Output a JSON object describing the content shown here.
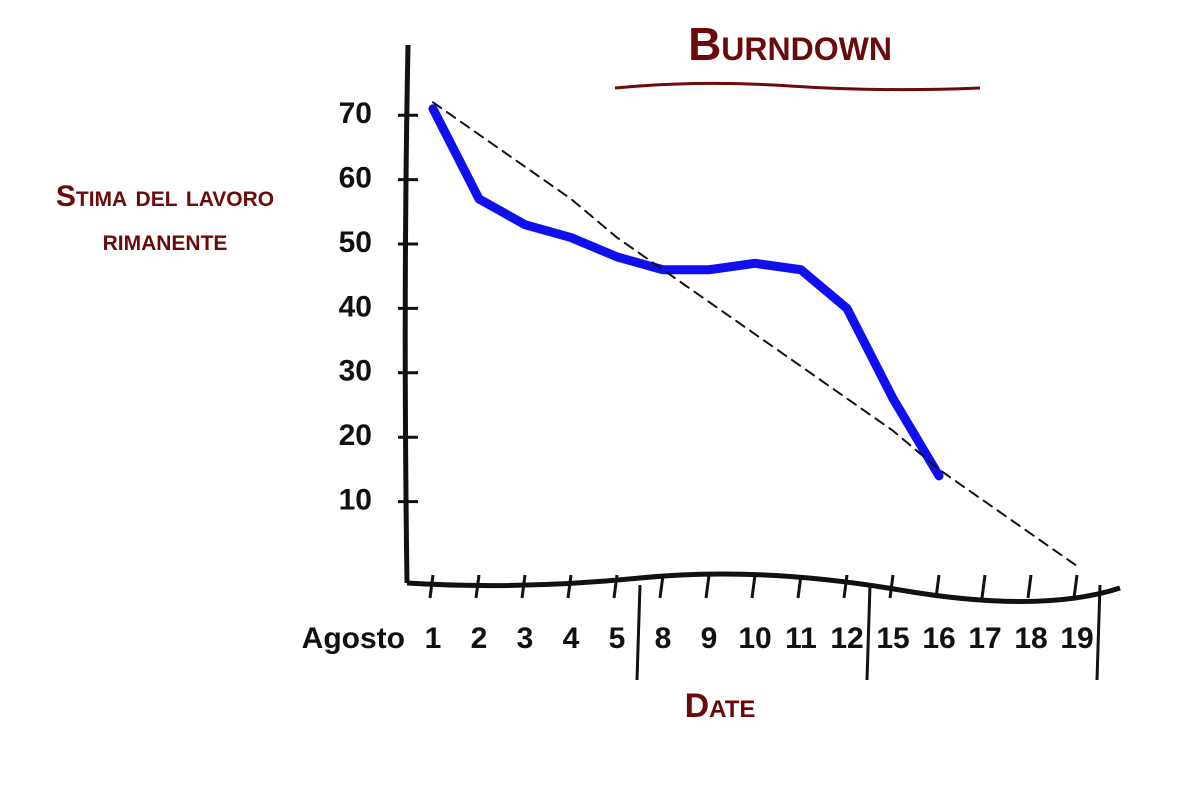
{
  "chart_data": {
    "type": "line",
    "title": "Burndown",
    "y_label": "Stima del lavoro rimanente",
    "x_label": "Date",
    "x_prefix": "Agosto",
    "categories": [
      "1",
      "2",
      "3",
      "4",
      "5",
      "8",
      "9",
      "10",
      "11",
      "12",
      "15",
      "16",
      "17",
      "18",
      "19"
    ],
    "series": [
      {
        "color": "#1010ee",
        "dashed": false,
        "values": [
          71,
          57,
          53,
          51,
          48,
          46,
          46,
          47,
          46,
          40,
          26,
          14,
          null,
          null,
          null
        ]
      },
      {
        "color": "#111111",
        "dashed": true,
        "values": [
          72,
          67,
          62,
          57,
          51,
          46,
          41,
          36,
          31,
          26,
          21,
          15,
          10,
          5,
          0
        ]
      }
    ],
    "ylim": [
      0,
      75
    ],
    "yticks": [
      10,
      20,
      30,
      40,
      50,
      60,
      70
    ]
  }
}
